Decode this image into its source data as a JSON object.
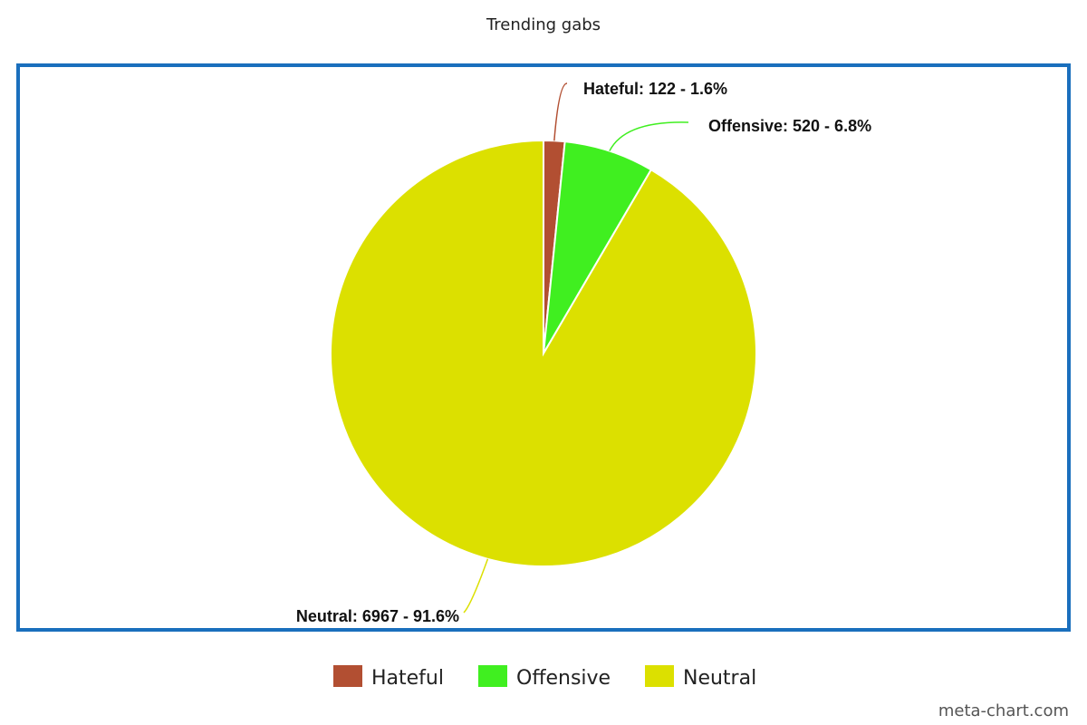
{
  "chart_data": {
    "type": "pie",
    "title": "Trending gabs",
    "legend_position": "bottom",
    "slices": [
      {
        "name": "Hateful",
        "value": 122,
        "percent": 1.6,
        "label": "Hateful: 122 - 1.6%",
        "color": "#b24f32"
      },
      {
        "name": "Offensive",
        "value": 520,
        "percent": 6.8,
        "label": "Offensive: 520 - 6.8%",
        "color": "#40ef20"
      },
      {
        "name": "Neutral",
        "value": 6967,
        "percent": 91.6,
        "label": "Neutral: 6967 - 91.6%",
        "color": "#dce000"
      }
    ],
    "frame_color": "#1a6fbd"
  },
  "watermark": "meta-chart.com"
}
